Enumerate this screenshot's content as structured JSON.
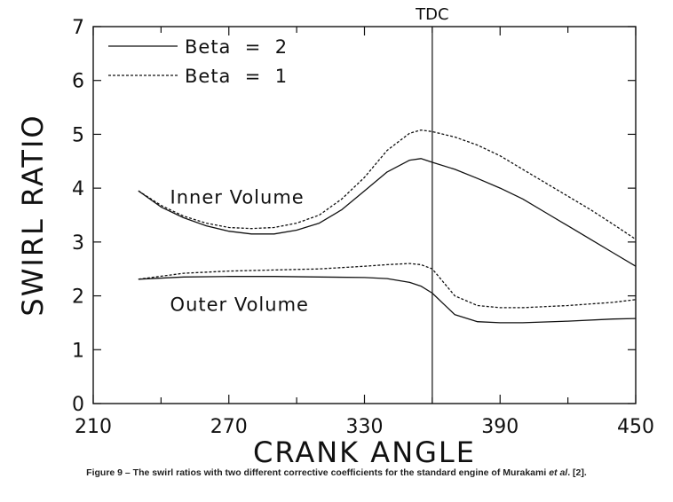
{
  "chart_data": {
    "type": "line",
    "title": "",
    "xlabel": "CRANK ANGLE",
    "ylabel": "SWIRL RATIO",
    "xlim": [
      210,
      450
    ],
    "ylim": [
      0,
      7
    ],
    "xticks": [
      210,
      270,
      330,
      390,
      450
    ],
    "yticks": [
      0,
      1,
      2,
      3,
      4,
      5,
      6,
      7
    ],
    "grid": false,
    "legend_position": "top-left",
    "vline": {
      "x": 360,
      "label": "TDC"
    },
    "annotations": [
      {
        "text": "Inner Volume",
        "x": 244,
        "y": 3.85
      },
      {
        "text": "Outer Volume",
        "x": 244,
        "y": 1.85
      }
    ],
    "series": [
      {
        "name": "Beta = 2",
        "style": "solid",
        "group": "inner",
        "x": [
          230,
          240,
          250,
          260,
          270,
          280,
          290,
          300,
          310,
          320,
          330,
          340,
          350,
          355,
          360,
          370,
          380,
          390,
          400,
          410,
          420,
          430,
          440,
          450
        ],
        "y": [
          3.95,
          3.65,
          3.45,
          3.3,
          3.2,
          3.15,
          3.15,
          3.22,
          3.35,
          3.6,
          3.95,
          4.3,
          4.52,
          4.55,
          4.48,
          4.35,
          4.18,
          4.0,
          3.8,
          3.55,
          3.3,
          3.05,
          2.8,
          2.55
        ]
      },
      {
        "name": "Beta = 1",
        "style": "dashed",
        "group": "inner",
        "x": [
          230,
          240,
          250,
          260,
          270,
          280,
          290,
          300,
          310,
          320,
          330,
          340,
          350,
          355,
          360,
          370,
          380,
          390,
          400,
          410,
          420,
          430,
          440,
          450
        ],
        "y": [
          3.95,
          3.68,
          3.48,
          3.35,
          3.27,
          3.25,
          3.27,
          3.35,
          3.5,
          3.8,
          4.2,
          4.7,
          5.02,
          5.08,
          5.05,
          4.95,
          4.8,
          4.6,
          4.35,
          4.1,
          3.85,
          3.6,
          3.33,
          3.05
        ]
      },
      {
        "name": "",
        "style": "solid",
        "group": "outer",
        "x": [
          230,
          250,
          270,
          290,
          310,
          330,
          340,
          350,
          355,
          360,
          365,
          370,
          380,
          390,
          400,
          420,
          440,
          450
        ],
        "y": [
          2.31,
          2.35,
          2.36,
          2.36,
          2.35,
          2.34,
          2.32,
          2.25,
          2.18,
          2.05,
          1.85,
          1.65,
          1.52,
          1.5,
          1.5,
          1.53,
          1.57,
          1.58
        ]
      },
      {
        "name": "",
        "style": "dashed",
        "group": "outer",
        "x": [
          230,
          250,
          270,
          290,
          310,
          330,
          340,
          350,
          355,
          360,
          365,
          370,
          380,
          390,
          400,
          420,
          440,
          450
        ],
        "y": [
          2.31,
          2.42,
          2.46,
          2.48,
          2.5,
          2.55,
          2.58,
          2.6,
          2.58,
          2.5,
          2.25,
          2.0,
          1.82,
          1.78,
          1.78,
          1.82,
          1.88,
          1.93
        ]
      }
    ]
  },
  "caption": {
    "text_before": "Figure 9 – The swirl ratios with two different corrective coefficients for the standard engine of Murakami ",
    "italic": "et al",
    "text_after": ". [2]."
  }
}
